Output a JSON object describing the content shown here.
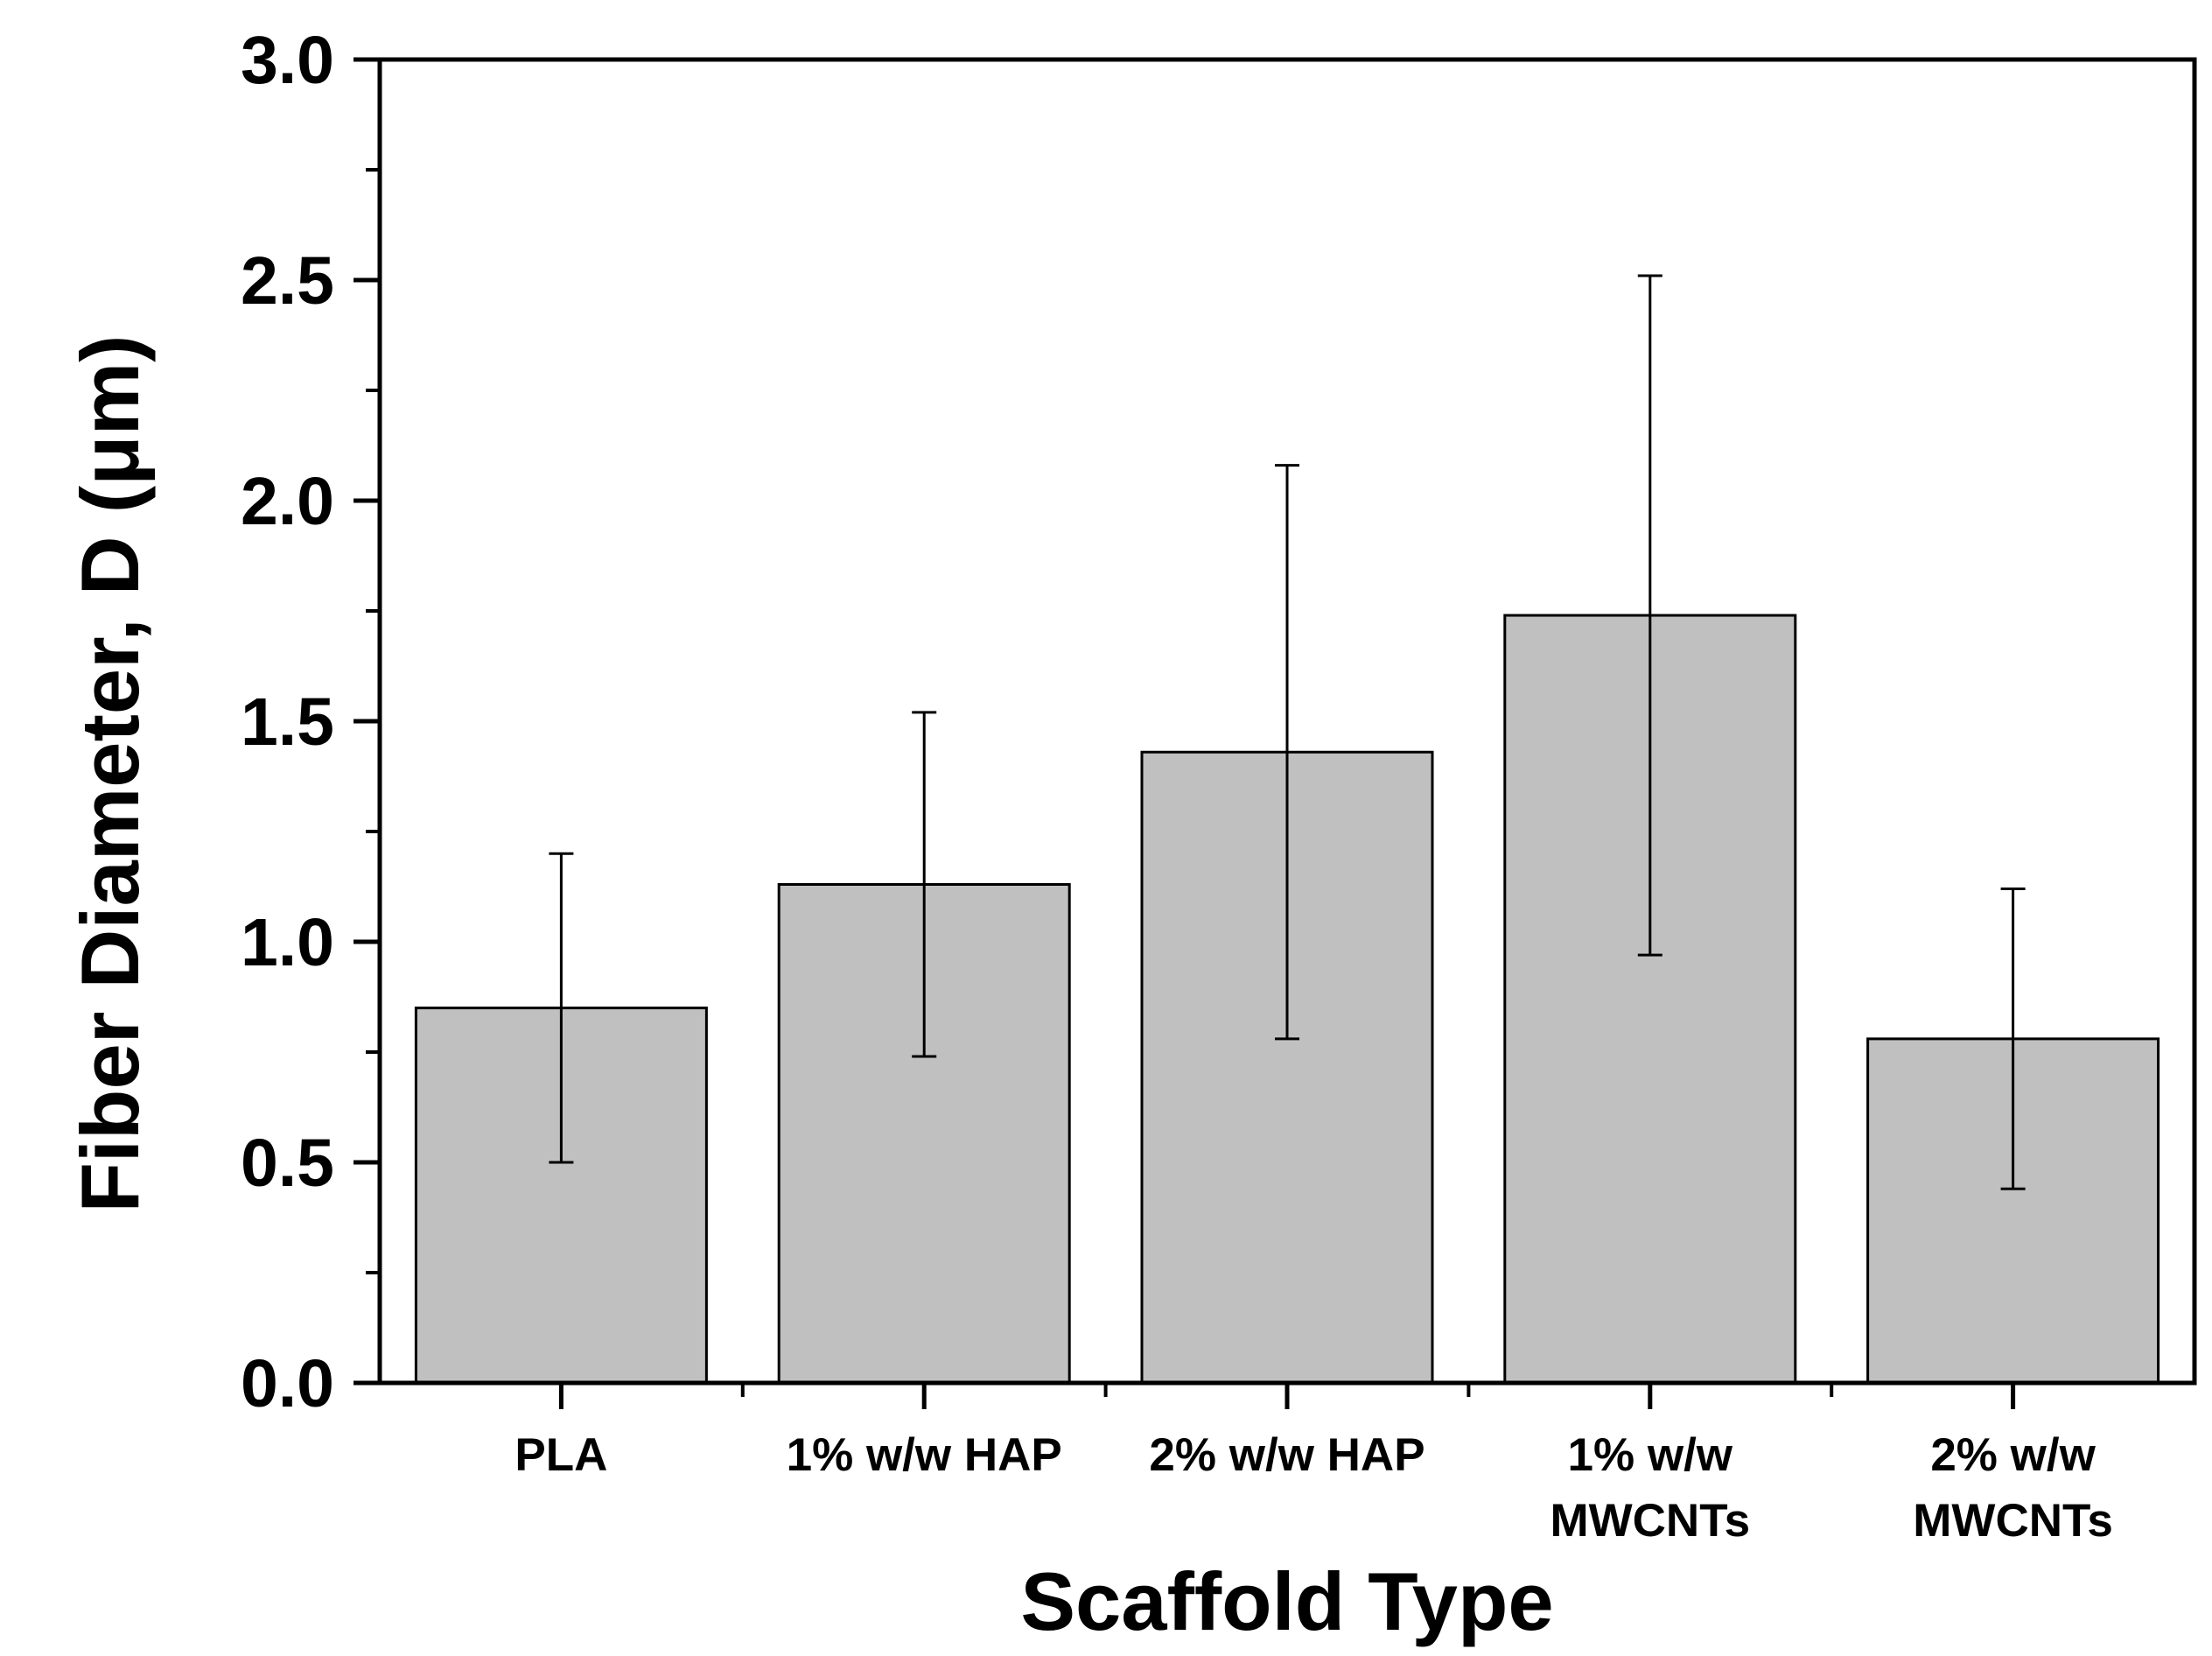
{
  "chart_data": {
    "type": "bar",
    "title": "",
    "xlabel": "Scaffold Type",
    "ylabel": "Fiber Diameter, D (μm)",
    "ylim": [
      0,
      3.0
    ],
    "yticks": [
      "0.0",
      "0.5",
      "1.0",
      "1.5",
      "2.0",
      "2.5",
      "3.0"
    ],
    "categories": [
      [
        "PLA"
      ],
      [
        "1% w/w HAP"
      ],
      [
        "2% w/w HAP"
      ],
      [
        "1% w/w",
        "MWCNTs"
      ],
      [
        "2% w/w",
        "MWCNTs"
      ]
    ],
    "series": [
      {
        "name": "Fiber Diameter",
        "values": [
          0.85,
          1.13,
          1.43,
          1.74,
          0.78
        ],
        "error_low": [
          0.5,
          0.74,
          0.78,
          0.97,
          0.44
        ],
        "error_high": [
          1.2,
          1.52,
          2.08,
          2.51,
          1.12
        ]
      }
    ],
    "bar_color": "#c0c0c0",
    "grid": false,
    "legend": "none"
  }
}
